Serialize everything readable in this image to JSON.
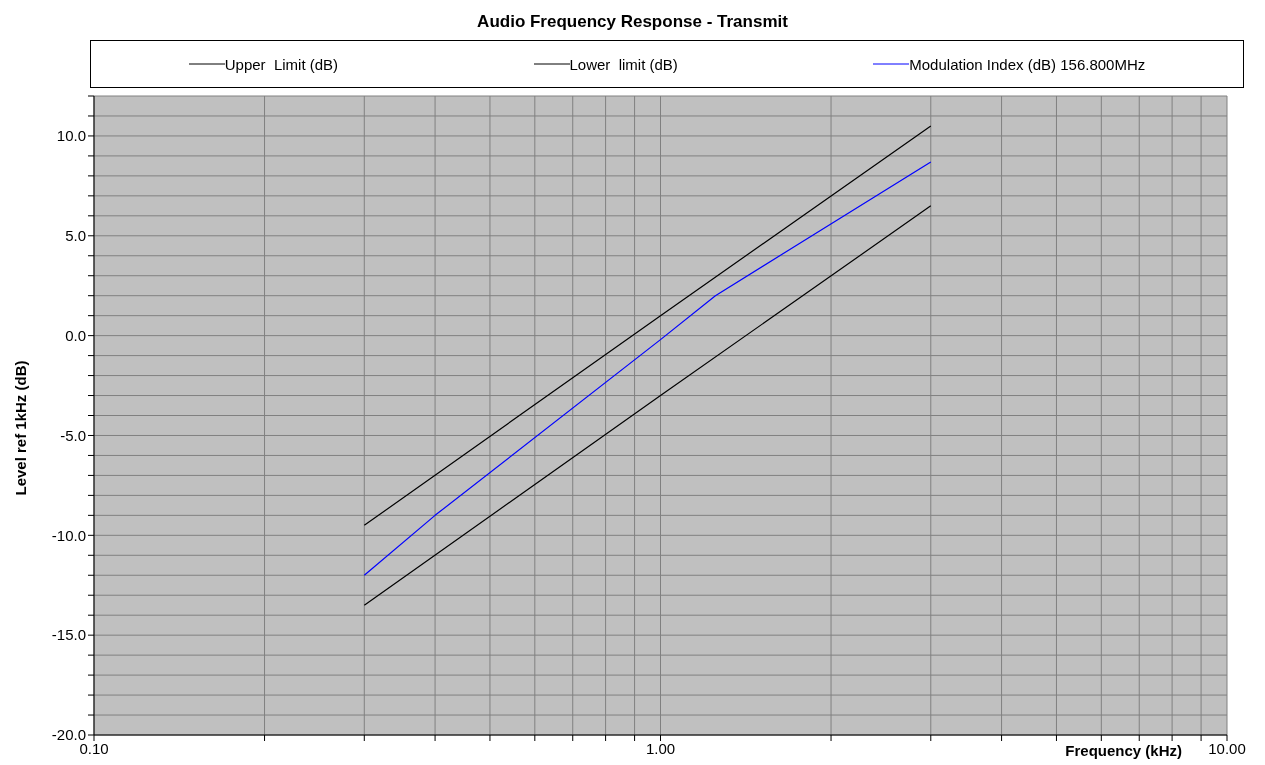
{
  "chart_data": {
    "type": "line",
    "title": "Audio Frequency Response - Transmit",
    "xlabel": "Frequency (kHz)",
    "ylabel": "Level ref 1kHz (dB)",
    "log": "x",
    "grid": true,
    "legend": "top",
    "marker": "none",
    "line_style": "solid",
    "xlim": [
      0.1,
      10
    ],
    "ylim": [
      -20,
      12
    ],
    "xticks": [
      {
        "value": 0.1,
        "label": "0.10"
      },
      {
        "value": 0.2,
        "label": null
      },
      {
        "value": 0.3,
        "label": null
      },
      {
        "value": 0.4,
        "label": null
      },
      {
        "value": 0.5,
        "label": null
      },
      {
        "value": 0.6,
        "label": null
      },
      {
        "value": 0.7,
        "label": null
      },
      {
        "value": 0.8,
        "label": null
      },
      {
        "value": 0.9,
        "label": null
      },
      {
        "value": 1,
        "label": "1.00"
      },
      {
        "value": 2,
        "label": null
      },
      {
        "value": 3,
        "label": null
      },
      {
        "value": 4,
        "label": null
      },
      {
        "value": 5,
        "label": null
      },
      {
        "value": 6,
        "label": null
      },
      {
        "value": 7,
        "label": null
      },
      {
        "value": 8,
        "label": null
      },
      {
        "value": 9,
        "label": null
      },
      {
        "value": 10,
        "label": "10.00"
      }
    ],
    "yticks": [
      {
        "value": -20,
        "label": "-20.0"
      },
      {
        "value": -19,
        "label": null
      },
      {
        "value": -18,
        "label": null
      },
      {
        "value": -17,
        "label": null
      },
      {
        "value": -16,
        "label": null
      },
      {
        "value": -15,
        "label": "-15.0"
      },
      {
        "value": -14,
        "label": null
      },
      {
        "value": -13,
        "label": null
      },
      {
        "value": -12,
        "label": null
      },
      {
        "value": -11,
        "label": null
      },
      {
        "value": -10,
        "label": "-10.0"
      },
      {
        "value": -9,
        "label": null
      },
      {
        "value": -8,
        "label": null
      },
      {
        "value": -7,
        "label": null
      },
      {
        "value": -6,
        "label": null
      },
      {
        "value": -5,
        "label": "-5.0"
      },
      {
        "value": -4,
        "label": null
      },
      {
        "value": -3,
        "label": null
      },
      {
        "value": -2,
        "label": null
      },
      {
        "value": -1,
        "label": null
      },
      {
        "value": 0,
        "label": "0.0"
      },
      {
        "value": 1,
        "label": null
      },
      {
        "value": 2,
        "label": null
      },
      {
        "value": 3,
        "label": null
      },
      {
        "value": 4,
        "label": null
      },
      {
        "value": 5,
        "label": "5.0"
      },
      {
        "value": 6,
        "label": null
      },
      {
        "value": 7,
        "label": null
      },
      {
        "value": 8,
        "label": null
      },
      {
        "value": 9,
        "label": null
      },
      {
        "value": 10,
        "label": "10.0"
      },
      {
        "value": 11,
        "label": null
      },
      {
        "value": 12,
        "label": null
      }
    ],
    "series": [
      {
        "name": "Upper  Limit (dB)",
        "color": "#000000",
        "x": [
          0.3,
          1,
          3
        ],
        "values": [
          -9.5,
          1,
          10.5
        ]
      },
      {
        "name": "Lower  limit (dB)",
        "color": "#000000",
        "x": [
          0.3,
          1,
          3
        ],
        "values": [
          -13.5,
          -3,
          6.5
        ]
      },
      {
        "name": "Modulation Index (dB) 156.800MHz",
        "color": "#0000ff",
        "x": [
          0.3,
          0.4,
          1,
          1.25,
          3
        ],
        "values": [
          -12,
          -9,
          -0.2,
          2,
          8.7
        ]
      }
    ]
  }
}
